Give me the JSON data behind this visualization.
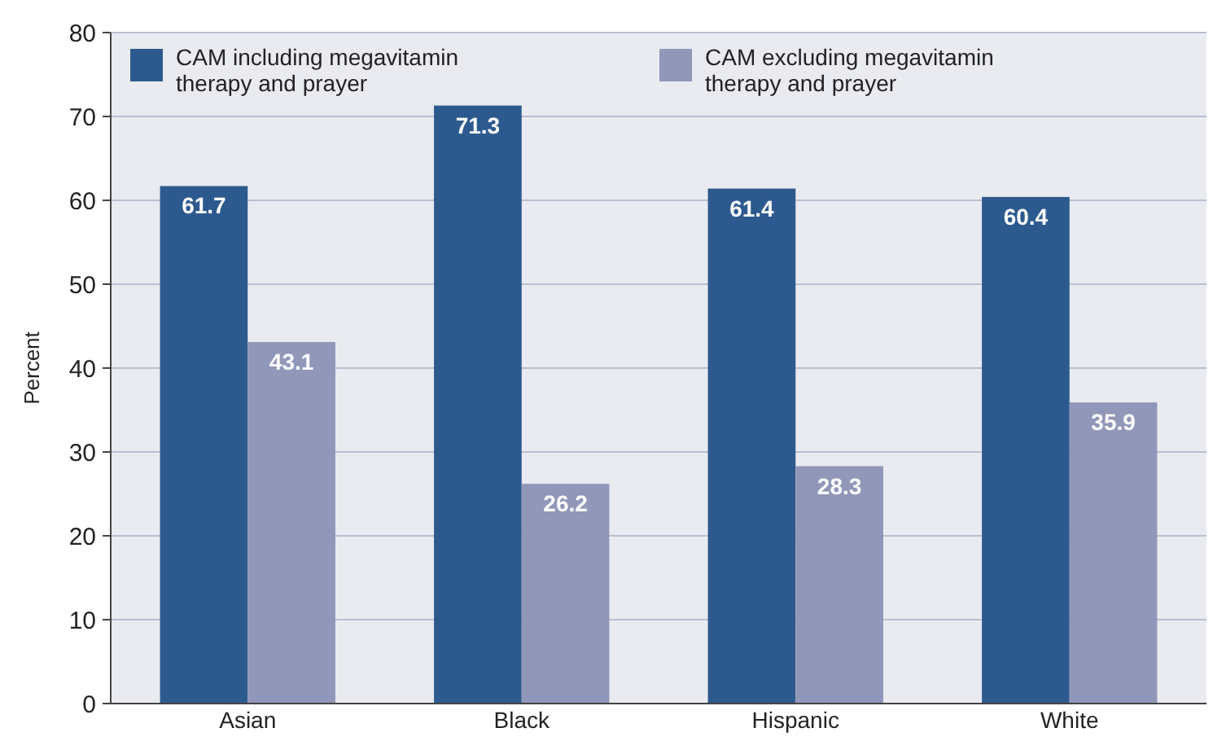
{
  "chart_data": {
    "type": "bar",
    "ylabel": "Percent",
    "categories": [
      "Asian",
      "Black",
      "Hispanic",
      "White"
    ],
    "series": [
      {
        "name": "CAM including megavitamin therapy and prayer",
        "color": "#2d5a8e",
        "values": [
          61.7,
          71.3,
          61.4,
          60.4
        ]
      },
      {
        "name": "CAM excluding megavitamin therapy and prayer",
        "color": "#9197b9",
        "values": [
          43.1,
          26.2,
          28.3,
          35.9
        ]
      }
    ],
    "ylim": [
      0,
      80
    ],
    "yticks": [
      0,
      10,
      20,
      30,
      40,
      50,
      60,
      70,
      80
    ],
    "grid": "y",
    "legend": "top left",
    "data_labels": true
  }
}
